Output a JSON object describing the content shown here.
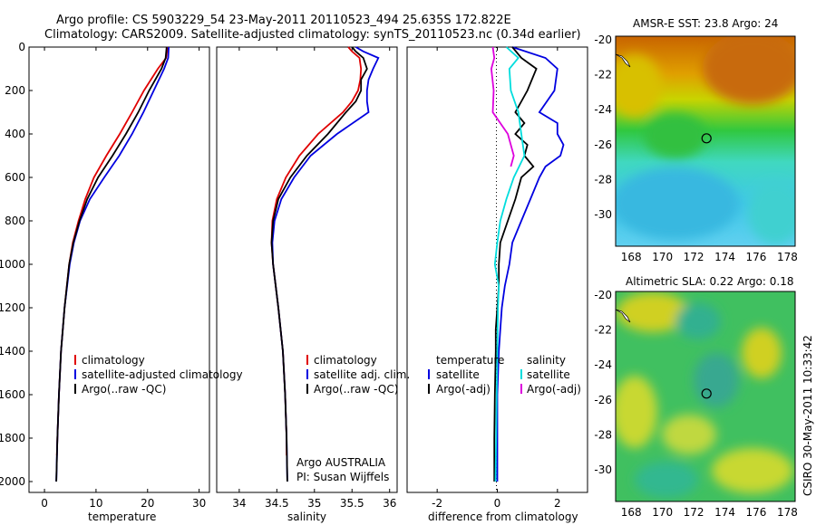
{
  "header": {
    "line1": "Argo profile: CS 5903229_54 23-May-2011 20110523_494 25.635S 172.822E",
    "line2": "Climatology: CARS2009. Satellite-adjusted climatology: synTS_20110523.nc (0.34d earlier)"
  },
  "side_label": "CSIRO 30-May-2011 10:33:42",
  "footer_note": {
    "line1": "Argo AUSTRALIA",
    "line2": "PI: Susan Wijffels"
  },
  "colors": {
    "climatology": "#e00000",
    "satellite": "#0000e0",
    "argo": "#000000",
    "sal_satellite": "#00dddd",
    "sal_argo": "#dd00dd"
  },
  "chart_data": [
    {
      "type": "line",
      "panel": "temperature",
      "xlabel": "temperature",
      "ylabel": "",
      "xlim": [
        -3,
        32
      ],
      "ylim": [
        2050,
        0
      ],
      "xticks": [
        0,
        10,
        20,
        30
      ],
      "yticks": [
        0,
        200,
        400,
        600,
        800,
        1000,
        1200,
        1400,
        1600,
        1800,
        2000
      ],
      "legend": [
        "climatology",
        "satellite-adjusted climatology",
        "Argo(..raw -QC)"
      ],
      "series": [
        {
          "name": "climatology",
          "color": "#e00000",
          "depth": [
            0,
            50,
            100,
            200,
            300,
            400,
            500,
            600,
            700,
            800,
            900,
            1000,
            1200,
            1400,
            1600,
            1800,
            1880
          ],
          "values": [
            23.9,
            23.6,
            22.0,
            19.3,
            17.0,
            14.6,
            12.0,
            9.6,
            7.9,
            6.6,
            5.5,
            4.8,
            3.9,
            3.2,
            2.8,
            2.5,
            2.4
          ]
        },
        {
          "name": "satellite-adjusted climatology",
          "color": "#0000e0",
          "depth": [
            0,
            50,
            100,
            200,
            300,
            400,
            500,
            600,
            700,
            800,
            900,
            1000,
            1200,
            1400,
            1600,
            1800,
            2000
          ],
          "values": [
            24.1,
            24.0,
            23.2,
            21.2,
            19.2,
            17.0,
            14.5,
            11.6,
            8.8,
            6.9,
            5.7,
            4.9,
            3.9,
            3.2,
            2.8,
            2.5,
            2.3
          ]
        },
        {
          "name": "Argo(..raw -QC)",
          "color": "#000000",
          "depth": [
            0,
            50,
            100,
            200,
            300,
            400,
            500,
            600,
            700,
            800,
            900,
            1000,
            1200,
            1400,
            1600,
            1800,
            2000
          ],
          "values": [
            23.7,
            23.5,
            22.7,
            20.3,
            18.2,
            15.8,
            13.2,
            10.4,
            8.3,
            6.8,
            5.6,
            4.8,
            3.9,
            3.2,
            2.8,
            2.5,
            2.3
          ]
        }
      ]
    },
    {
      "type": "line",
      "panel": "salinity",
      "xlabel": "salinity",
      "ylabel": "",
      "xlim": [
        33.7,
        36.1
      ],
      "ylim": [
        2050,
        0
      ],
      "xticks": [
        34,
        34.5,
        35,
        35.5,
        36
      ],
      "legend": [
        "climatology",
        "satellite adj. clim.",
        "Argo(..raw -QC)"
      ],
      "series": [
        {
          "name": "climatology",
          "color": "#e00000",
          "depth": [
            0,
            20,
            50,
            100,
            150,
            200,
            250,
            300,
            400,
            500,
            600,
            700,
            800,
            900,
            1000,
            1200,
            1400,
            1600,
            1800,
            1880
          ],
          "values": [
            35.45,
            35.5,
            35.6,
            35.62,
            35.61,
            35.58,
            35.5,
            35.38,
            35.05,
            34.8,
            34.62,
            34.5,
            34.44,
            34.43,
            34.45,
            34.52,
            34.58,
            34.61,
            34.63,
            34.63
          ]
        },
        {
          "name": "satellite adj. clim.",
          "color": "#0000e0",
          "depth": [
            0,
            20,
            50,
            100,
            150,
            200,
            250,
            300,
            400,
            500,
            600,
            700,
            800,
            900,
            1000,
            1200,
            1400,
            1600,
            1800,
            2000
          ],
          "values": [
            35.55,
            35.65,
            35.85,
            35.78,
            35.72,
            35.7,
            35.7,
            35.72,
            35.3,
            34.95,
            34.73,
            34.56,
            34.47,
            34.44,
            34.45,
            34.52,
            34.58,
            34.61,
            34.63,
            34.64
          ]
        },
        {
          "name": "Argo(..raw -QC)",
          "color": "#000000",
          "depth": [
            0,
            20,
            50,
            100,
            150,
            200,
            250,
            300,
            400,
            500,
            600,
            700,
            800,
            900,
            1000,
            1200,
            1400,
            1600,
            1800,
            2000
          ],
          "values": [
            35.5,
            35.55,
            35.65,
            35.7,
            35.62,
            35.62,
            35.55,
            35.42,
            35.18,
            34.9,
            34.68,
            34.52,
            34.45,
            34.43,
            34.45,
            34.52,
            34.58,
            34.61,
            34.63,
            34.64
          ]
        }
      ]
    },
    {
      "type": "line",
      "panel": "difference",
      "xlabel": "difference from climatology",
      "ylabel": "",
      "xlim": [
        -3,
        3
      ],
      "ylim": [
        2050,
        0
      ],
      "xticks": [
        -2,
        0,
        2
      ],
      "legend_temperature_title": "temperature",
      "legend_salinity_title": "salinity",
      "legend_temperature": [
        "satellite",
        "Argo(-adj)"
      ],
      "legend_salinity": [
        "satellite",
        "Argo(-adj)"
      ],
      "series": [
        {
          "name": "temperature satellite",
          "color": "#0000e0",
          "depth": [
            0,
            50,
            100,
            200,
            300,
            350,
            400,
            450,
            500,
            550,
            600,
            700,
            800,
            900,
            1000,
            1100,
            1200,
            1300,
            1400,
            1600,
            1800,
            2000
          ],
          "values": [
            0.5,
            1.6,
            2.0,
            1.9,
            1.4,
            2.0,
            2.0,
            2.2,
            2.1,
            1.6,
            1.4,
            1.1,
            0.8,
            0.5,
            0.4,
            0.25,
            0.15,
            0.1,
            0.05,
            0.0,
            0.0,
            0.0
          ]
        },
        {
          "name": "temperature Argo(-adj)",
          "color": "#000000",
          "depth": [
            0,
            50,
            100,
            200,
            300,
            350,
            400,
            450,
            500,
            550,
            600,
            700,
            800,
            900,
            1000,
            1100,
            1200,
            1300,
            1400,
            1600,
            1800,
            2000
          ],
          "values": [
            0.5,
            0.8,
            1.3,
            1.0,
            0.6,
            0.9,
            0.6,
            1.0,
            0.9,
            1.2,
            0.8,
            0.6,
            0.35,
            0.1,
            0.05,
            0.05,
            0.0,
            -0.05,
            -0.05,
            -0.08,
            -0.1,
            -0.1
          ]
        },
        {
          "name": "salinity satellite",
          "color": "#00dddd",
          "depth": [
            0,
            50,
            100,
            200,
            300,
            400,
            500,
            600,
            700,
            800,
            900,
            1000,
            1100,
            1200,
            1400,
            1600,
            1800,
            2000
          ],
          "values": [
            0.3,
            0.7,
            0.4,
            0.45,
            0.7,
            0.8,
            0.9,
            0.55,
            0.3,
            0.1,
            0.0,
            -0.08,
            0.05,
            0.02,
            0.0,
            -0.02,
            -0.04,
            -0.06
          ]
        },
        {
          "name": "salinity Argo(-adj)",
          "color": "#dd00dd",
          "depth": [
            0,
            50,
            100,
            200,
            300,
            400,
            500,
            550
          ],
          "values": [
            -0.15,
            -0.1,
            -0.2,
            -0.12,
            -0.15,
            0.35,
            0.55,
            0.45
          ]
        }
      ]
    },
    {
      "type": "heatmap",
      "panel": "sst-map",
      "title": "AMSR-E SST: 23.8 Argo: 24",
      "xlim": [
        167,
        178.5
      ],
      "ylim": [
        -31.8,
        -19.8
      ],
      "xticks": [
        168,
        170,
        172,
        174,
        176,
        178
      ],
      "yticks": [
        -20,
        -22,
        -24,
        -26,
        -28,
        -30
      ],
      "marker": {
        "lon": 172.822,
        "lat": -25.635
      }
    },
    {
      "type": "heatmap",
      "panel": "sla-map",
      "title": "Altimetric SLA: 0.22 Argo: 0.18",
      "xlim": [
        167,
        178.5
      ],
      "ylim": [
        -31.8,
        -19.8
      ],
      "xticks": [
        168,
        170,
        172,
        174,
        176,
        178
      ],
      "yticks": [
        -20,
        -22,
        -24,
        -26,
        -28,
        -30
      ],
      "marker": {
        "lon": 172.822,
        "lat": -25.635
      }
    }
  ]
}
